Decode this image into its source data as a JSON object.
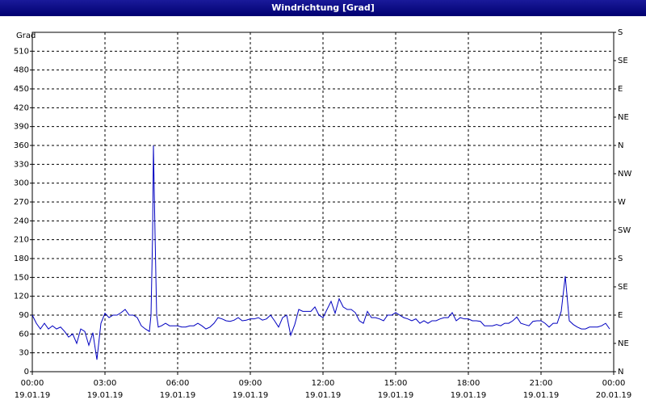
{
  "chart_data": {
    "type": "line",
    "title": "Windrichtung [Grad]",
    "y_label": "Grad",
    "x": [
      0,
      10,
      20,
      30,
      40,
      50,
      60,
      70,
      80,
      90,
      100,
      110,
      120,
      130,
      140,
      150,
      160,
      170,
      180,
      190,
      200,
      210,
      220,
      230,
      240,
      250,
      260,
      270,
      280,
      290,
      294,
      298,
      300,
      304,
      308,
      312,
      320,
      330,
      340,
      350,
      360,
      370,
      380,
      390,
      400,
      410,
      420,
      430,
      440,
      450,
      460,
      470,
      480,
      490,
      500,
      510,
      520,
      530,
      540,
      550,
      560,
      570,
      580,
      590,
      600,
      610,
      620,
      630,
      640,
      650,
      660,
      670,
      680,
      690,
      700,
      710,
      720,
      730,
      740,
      750,
      760,
      770,
      780,
      790,
      800,
      810,
      820,
      830,
      840,
      850,
      860,
      870,
      880,
      890,
      900,
      910,
      920,
      930,
      940,
      950,
      960,
      970,
      980,
      990,
      1000,
      1010,
      1020,
      1030,
      1040,
      1050,
      1060,
      1070,
      1080,
      1090,
      1100,
      1110,
      1120,
      1130,
      1140,
      1150,
      1160,
      1170,
      1180,
      1190,
      1200,
      1210,
      1220,
      1230,
      1240,
      1250,
      1260,
      1270,
      1280,
      1290,
      1300,
      1310,
      1320,
      1330,
      1340,
      1350,
      1360,
      1370,
      1380,
      1390,
      1400,
      1410,
      1420,
      1430
    ],
    "series": [
      {
        "color": "#0000c0",
        "values": [
          90,
          77,
          68,
          77,
          68,
          73,
          68,
          71,
          64,
          55,
          60,
          45,
          68,
          64,
          42,
          62,
          19,
          77,
          93,
          86,
          90,
          90,
          94,
          99,
          90,
          90,
          86,
          73,
          68,
          64,
          90,
          219,
          360,
          219,
          90,
          71,
          73,
          77,
          73,
          73,
          73,
          71,
          71,
          73,
          73,
          77,
          73,
          68,
          71,
          77,
          86,
          84,
          81,
          80,
          82,
          86,
          81,
          82,
          84,
          84,
          86,
          82,
          84,
          90,
          81,
          71,
          86,
          90,
          58,
          75,
          99,
          96,
          96,
          96,
          103,
          90,
          86,
          99,
          112,
          93,
          116,
          103,
          99,
          99,
          94,
          81,
          77,
          96,
          86,
          86,
          84,
          81,
          90,
          90,
          94,
          90,
          86,
          84,
          81,
          84,
          77,
          81,
          77,
          81,
          81,
          84,
          86,
          86,
          94,
          81,
          86,
          84,
          84,
          81,
          81,
          80,
          73,
          73,
          73,
          75,
          73,
          77,
          77,
          81,
          87,
          77,
          75,
          73,
          80,
          81,
          81,
          77,
          71,
          77,
          77,
          96,
          152,
          81,
          75,
          71,
          68,
          68,
          71,
          71,
          71,
          73,
          77,
          68
        ]
      }
    ],
    "xlim": [
      0,
      1440
    ],
    "xticks": [
      {
        "value": 0,
        "label": "00:00",
        "date": "19.01.19"
      },
      {
        "value": 180,
        "label": "03:00",
        "date": "19.01.19"
      },
      {
        "value": 360,
        "label": "06:00",
        "date": "19.01.19"
      },
      {
        "value": 540,
        "label": "09:00",
        "date": "19.01.19"
      },
      {
        "value": 720,
        "label": "12:00",
        "date": "19.01.19"
      },
      {
        "value": 900,
        "label": "15:00",
        "date": "19.01.19"
      },
      {
        "value": 1080,
        "label": "18:00",
        "date": "19.01.19"
      },
      {
        "value": 1260,
        "label": "21:00",
        "date": "19.01.19"
      },
      {
        "value": 1440,
        "label": "00:00",
        "date": "20.01.19"
      }
    ],
    "ylim": [
      0,
      540
    ],
    "yticks": [
      0,
      30,
      60,
      90,
      120,
      150,
      180,
      210,
      240,
      270,
      300,
      330,
      360,
      390,
      420,
      450,
      480,
      510
    ],
    "y2lim": [
      0,
      540
    ],
    "y2ticks": [
      {
        "value": 0,
        "label": "N"
      },
      {
        "value": 45,
        "label": "NE"
      },
      {
        "value": 90,
        "label": "E"
      },
      {
        "value": 135,
        "label": "SE"
      },
      {
        "value": 180,
        "label": "S"
      },
      {
        "value": 225,
        "label": "SW"
      },
      {
        "value": 270,
        "label": "W"
      },
      {
        "value": 315,
        "label": "NW"
      },
      {
        "value": 360,
        "label": "N"
      },
      {
        "value": 405,
        "label": "NE"
      },
      {
        "value": 450,
        "label": "E"
      },
      {
        "value": 495,
        "label": "SE"
      },
      {
        "value": 540,
        "label": "S"
      }
    ],
    "grid": true
  }
}
